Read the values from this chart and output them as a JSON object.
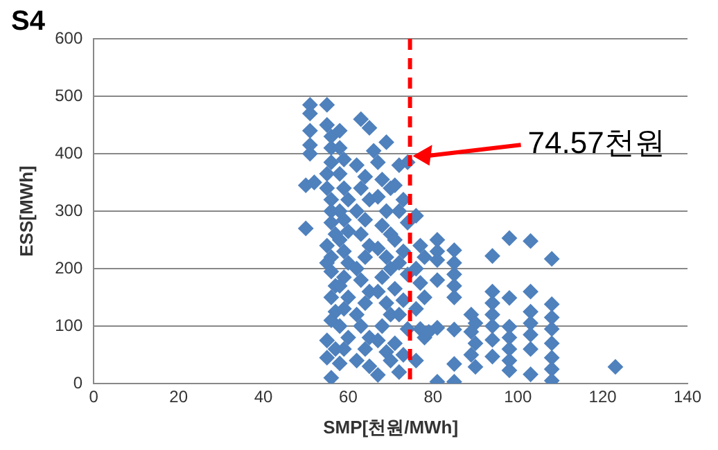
{
  "chart_data": {
    "type": "scatter",
    "title": "S4",
    "xlabel": "SMP[천원/MWh]",
    "ylabel": "ESS[MWh]",
    "xlim": [
      0,
      140
    ],
    "xticks": [
      0,
      20,
      40,
      60,
      80,
      100,
      120,
      140
    ],
    "ylim": [
      0,
      600
    ],
    "yticks": [
      0,
      100,
      200,
      300,
      400,
      500,
      600
    ],
    "grid": "y",
    "legend": false,
    "marker": "diamond",
    "ref_lines": [
      {
        "axis": "x",
        "value": 74.57,
        "color": "#ff0000",
        "line_style": "dashed"
      }
    ],
    "annotations": [
      "74.57천원"
    ],
    "series": [
      {
        "color": "#4f81bd",
        "x": [
          51,
          51,
          51,
          51,
          51,
          50,
          50,
          52,
          55,
          55,
          56,
          56,
          56,
          55,
          55,
          56,
          56,
          56,
          57,
          55,
          56,
          55,
          56,
          57,
          56,
          57,
          56,
          55,
          55,
          56,
          57,
          58,
          58,
          59,
          58,
          59,
          60,
          58,
          59,
          60,
          58,
          59,
          60,
          59,
          58,
          60,
          59,
          58,
          60,
          59,
          58,
          63,
          65,
          66,
          62,
          64,
          63,
          65,
          62,
          64,
          63,
          65,
          64,
          62,
          63,
          65,
          64,
          62,
          63,
          65,
          64,
          62,
          65,
          69,
          67,
          68,
          70,
          67,
          69,
          68,
          70,
          67,
          69,
          70,
          68,
          67,
          69,
          70,
          68,
          67,
          69,
          70,
          67,
          72,
          71,
          73,
          72,
          74,
          71,
          73,
          72,
          74,
          71,
          73,
          72,
          74,
          71,
          73,
          72,
          74,
          76,
          77,
          78,
          76,
          77,
          78,
          76,
          77,
          78,
          76,
          81,
          81,
          81,
          81,
          81,
          81,
          79,
          85,
          85,
          85,
          85,
          85,
          85,
          85,
          85,
          89,
          90,
          89,
          90,
          89,
          90,
          94,
          94,
          94,
          94,
          94,
          94,
          94,
          98,
          98,
          98,
          98,
          98,
          98,
          98,
          103,
          103,
          103,
          103,
          103,
          103,
          103,
          108,
          108,
          108,
          108,
          108,
          108,
          108,
          108,
          123
        ],
        "values": [
          485,
          470,
          440,
          415,
          400,
          345,
          270,
          350,
          485,
          450,
          430,
          410,
          385,
          365,
          340,
          320,
          300,
          280,
          260,
          240,
          220,
          210,
          195,
          170,
          150,
          125,
          110,
          75,
          45,
          10,
          60,
          440,
          410,
          390,
          365,
          340,
          320,
          300,
          285,
          265,
          250,
          230,
          210,
          185,
          170,
          150,
          130,
          100,
          80,
          60,
          35,
          460,
          445,
          405,
          380,
          360,
          340,
          320,
          300,
          285,
          260,
          240,
          220,
          200,
          180,
          160,
          140,
          120,
          100,
          80,
          60,
          40,
          30,
          420,
          385,
          355,
          340,
          325,
          300,
          275,
          260,
          235,
          220,
          200,
          185,
          160,
          140,
          120,
          100,
          75,
          55,
          40,
          15,
          380,
          345,
          320,
          300,
          280,
          250,
          230,
          210,
          190,
          165,
          145,
          120,
          95,
          70,
          50,
          20,
          385,
          292,
          240,
          220,
          200,
          175,
          150,
          130,
          95,
          80,
          40,
          250,
          230,
          215,
          180,
          97,
          3,
          90,
          232,
          210,
          190,
          170,
          150,
          94,
          34,
          3,
          120,
          105,
          90,
          70,
          50,
          29,
          222,
          160,
          140,
          120,
          100,
          76,
          47,
          253,
          149,
          99,
          80,
          60,
          40,
          23,
          248,
          160,
          125,
          105,
          85,
          60,
          16,
          217,
          138,
          115,
          95,
          70,
          45,
          25,
          5,
          29
        ]
      }
    ]
  }
}
